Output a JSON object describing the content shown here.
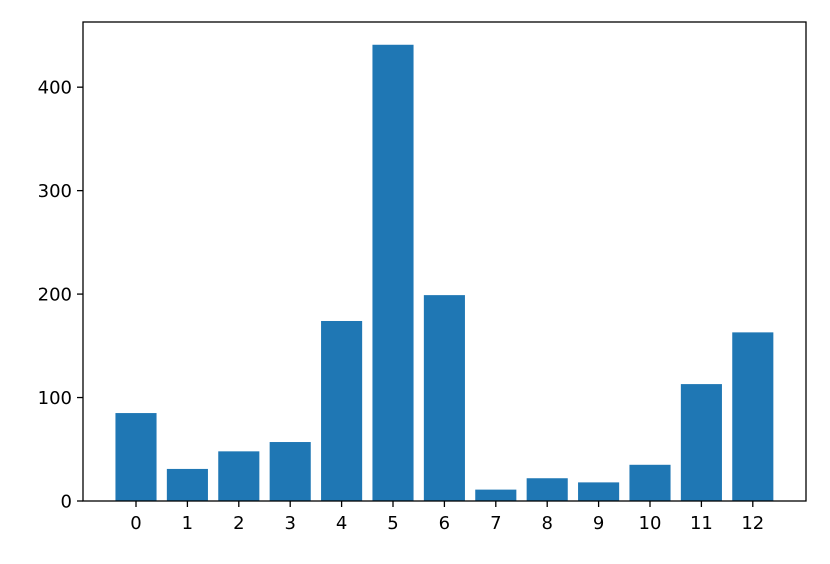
{
  "chart_data": {
    "type": "bar",
    "categories": [
      "0",
      "1",
      "2",
      "3",
      "4",
      "5",
      "6",
      "7",
      "8",
      "9",
      "10",
      "11",
      "12"
    ],
    "values": [
      85,
      31,
      48,
      57,
      174,
      441,
      199,
      11,
      22,
      18,
      35,
      113,
      163
    ],
    "title": "",
    "xlabel": "",
    "ylabel": "",
    "ylim": [
      0,
      463
    ],
    "yticks": [
      0,
      100,
      200,
      300,
      400
    ],
    "grid": false,
    "legend": "none",
    "bar_color": "#1f77b4"
  }
}
